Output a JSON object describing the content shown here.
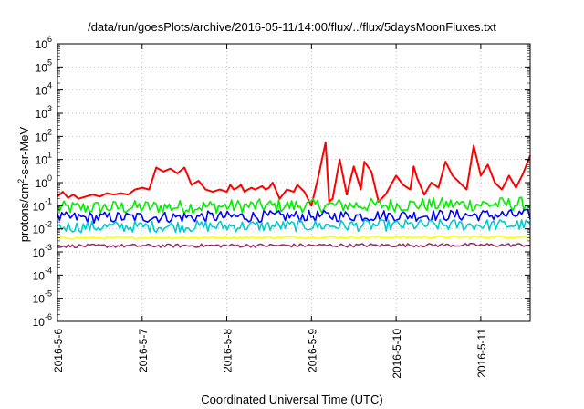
{
  "chart_data": {
    "type": "line",
    "title": "/data/run/goesPlots/archive/2016-05-11/14:00/flux/../flux/5daysMoonFluxes.txt",
    "xlabel": "Coordinated Universal Time (UTC)",
    "ylabel": {
      "pre": "protons/cm",
      "sup": "2",
      "post": "-s-sr-MeV"
    },
    "x_ticks": [
      "2016-5-6",
      "2016-5-7",
      "2016-5-8",
      "2016-5-9",
      "2016-5-10",
      "2016-5-11"
    ],
    "xlim": [
      "2016-05-06 00:00",
      "2016-05-11 14:00"
    ],
    "y_scale": "log",
    "ylim": [
      1e-06,
      1000000.0
    ],
    "y_ticks": [
      {
        "base": "10",
        "exp": "-6"
      },
      {
        "base": "10",
        "exp": "-5"
      },
      {
        "base": "10",
        "exp": "-4"
      },
      {
        "base": "10",
        "exp": "-3"
      },
      {
        "base": "10",
        "exp": "-2"
      },
      {
        "base": "10",
        "exp": "-1"
      },
      {
        "base": "10",
        "exp": "0"
      },
      {
        "base": "10",
        "exp": "1"
      },
      {
        "base": "10",
        "exp": "2"
      },
      {
        "base": "10",
        "exp": "3"
      },
      {
        "base": "10",
        "exp": "4"
      },
      {
        "base": "10",
        "exp": "5"
      },
      {
        "base": "10",
        "exp": "6"
      }
    ],
    "grid": true,
    "legend": "none",
    "series": [
      {
        "color": "#ff0000",
        "x": [
          "2016-05-06 00:00",
          "2016-05-06 01:30",
          "2016-05-06 03:00",
          "2016-05-06 04:30",
          "2016-05-06 06:00",
          "2016-05-06 08:00",
          "2016-05-06 10:00",
          "2016-05-06 12:00",
          "2016-05-06 14:00",
          "2016-05-06 16:00",
          "2016-05-06 18:00",
          "2016-05-06 20:00",
          "2016-05-06 22:00",
          "2016-05-07 00:00",
          "2016-05-07 02:00",
          "2016-05-07 04:00",
          "2016-05-07 06:00",
          "2016-05-07 08:00",
          "2016-05-07 10:00",
          "2016-05-07 12:00",
          "2016-05-07 14:00",
          "2016-05-07 16:00",
          "2016-05-07 18:00",
          "2016-05-07 20:00",
          "2016-05-07 22:00",
          "2016-05-08 00:00",
          "2016-05-08 01:00",
          "2016-05-08 02:00",
          "2016-05-08 03:00",
          "2016-05-08 04:00",
          "2016-05-08 05:00",
          "2016-05-08 06:00",
          "2016-05-08 07:00",
          "2016-05-08 08:00",
          "2016-05-08 10:00",
          "2016-05-08 11:00",
          "2016-05-08 12:00",
          "2016-05-08 13:00",
          "2016-05-08 15:00",
          "2016-05-08 17:00",
          "2016-05-08 19:00",
          "2016-05-08 20:00",
          "2016-05-08 22:00",
          "2016-05-09 00:00",
          "2016-05-09 02:00",
          "2016-05-09 04:00",
          "2016-05-09 05:00",
          "2016-05-09 06:00",
          "2016-05-09 08:00",
          "2016-05-09 10:00",
          "2016-05-09 12:00",
          "2016-05-09 14:00",
          "2016-05-09 15:00",
          "2016-05-09 17:00",
          "2016-05-09 19:00",
          "2016-05-09 21:00",
          "2016-05-10 00:00",
          "2016-05-10 02:00",
          "2016-05-10 04:00",
          "2016-05-10 05:00",
          "2016-05-10 06:00",
          "2016-05-10 08:00",
          "2016-05-10 10:00",
          "2016-05-10 12:00",
          "2016-05-10 14:00",
          "2016-05-10 16:00",
          "2016-05-10 18:00",
          "2016-05-10 20:00",
          "2016-05-10 22:00",
          "2016-05-11 00:00",
          "2016-05-11 02:00",
          "2016-05-11 04:00",
          "2016-05-11 06:00",
          "2016-05-11 08:00",
          "2016-05-11 10:00",
          "2016-05-11 12:00",
          "2016-05-11 14:00"
        ],
        "y": [
          0.25,
          0.4,
          0.22,
          0.3,
          0.2,
          0.25,
          0.3,
          0.25,
          0.35,
          0.3,
          0.35,
          0.3,
          0.5,
          0.6,
          0.5,
          4.5,
          3.0,
          4.0,
          2.5,
          4.5,
          0.8,
          1.2,
          0.5,
          0.4,
          0.5,
          0.4,
          0.8,
          0.5,
          0.6,
          0.8,
          0.4,
          0.5,
          0.6,
          0.5,
          0.7,
          0.5,
          0.6,
          1.0,
          0.2,
          0.5,
          0.4,
          0.8,
          0.4,
          0.1,
          2.0,
          55.0,
          0.15,
          0.2,
          10.0,
          0.3,
          5.0,
          0.5,
          8.0,
          3.0,
          0.15,
          0.3,
          2.0,
          0.8,
          0.5,
          5.0,
          1.5,
          0.3,
          1.0,
          0.6,
          8.0,
          2.0,
          1.0,
          0.5,
          40.0,
          2.0,
          6.0,
          1.0,
          0.5,
          2.0,
          0.6,
          2.5,
          15.0
        ]
      },
      {
        "color": "#00ee00",
        "x": [
          "2016-05-06 00:00",
          "2016-05-11 14:00"
        ],
        "y": [
          0.08,
          0.12
        ],
        "variability": 0.6
      },
      {
        "color": "#0000ff",
        "x": [
          "2016-05-06 00:00",
          "2016-05-11 14:00"
        ],
        "y": [
          0.03,
          0.04
        ],
        "variability": 0.5
      },
      {
        "color": "#00cccc",
        "x": [
          "2016-05-06 00:00",
          "2016-05-11 14:00"
        ],
        "y": [
          0.012,
          0.015
        ],
        "variability": 0.5
      },
      {
        "color": "#ffff00",
        "x": [
          "2016-05-06 00:00",
          "2016-05-11 14:00"
        ],
        "y": [
          0.004,
          0.0045
        ],
        "variability": 0.1
      },
      {
        "color": "#993366",
        "x": [
          "2016-05-06 00:00",
          "2016-05-11 14:00"
        ],
        "y": [
          0.0018,
          0.002
        ],
        "variability": 0.15
      }
    ]
  }
}
